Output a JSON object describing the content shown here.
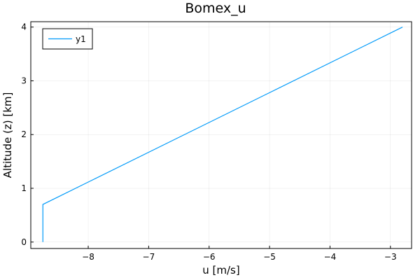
{
  "chart_data": {
    "type": "line",
    "title": "Bomex_u",
    "xlabel": "u [m/s]",
    "ylabel": "Altitude (z) [km]",
    "xlim": [
      -8.95,
      -2.65
    ],
    "ylim": [
      -0.12,
      4.1
    ],
    "xticks": [
      -8,
      -7,
      -6,
      -5,
      -4,
      -3
    ],
    "xtick_labels": [
      "−8",
      "−7",
      "−6",
      "−5",
      "−4",
      "−3"
    ],
    "yticks": [
      0,
      1,
      2,
      3,
      4
    ],
    "ytick_labels": [
      "0",
      "1",
      "2",
      "3",
      "4"
    ],
    "grid": true,
    "legend_position": "top-left",
    "series": [
      {
        "name": "y1",
        "color": "#009af9",
        "x": [
          -8.75,
          -8.75,
          -2.8
        ],
        "y": [
          0.0,
          0.7,
          4.0
        ]
      }
    ]
  }
}
